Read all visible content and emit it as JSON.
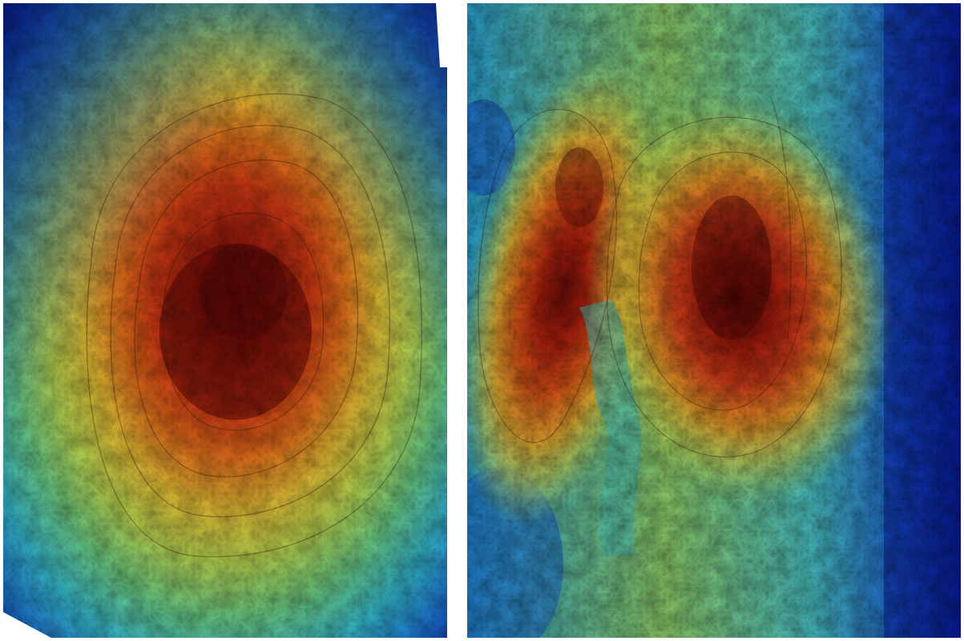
{
  "panels": [
    {
      "name": "left-bathymetry-panel",
      "description_icon": "single-peak-heatmap",
      "colors": {
        "deep": "#0a1f9e",
        "mid_blue": "#1e6fd8",
        "cyan": "#3cc6c8",
        "green": "#8fd16a",
        "yellow": "#e8d63a",
        "orange": "#e8881f",
        "red": "#d23a14",
        "dark_red": "#7a0e0a"
      }
    },
    {
      "name": "right-bathymetry-panel",
      "description_icon": "twin-peak-heatmap",
      "colors": {
        "deep": "#0a1fa8",
        "mid_blue": "#1e6fd8",
        "cyan": "#3cc6c8",
        "green": "#8fd16a",
        "yellow": "#e8d63a",
        "orange": "#e8881f",
        "red": "#d23a14",
        "dark_red": "#7a0e0a"
      }
    }
  ]
}
